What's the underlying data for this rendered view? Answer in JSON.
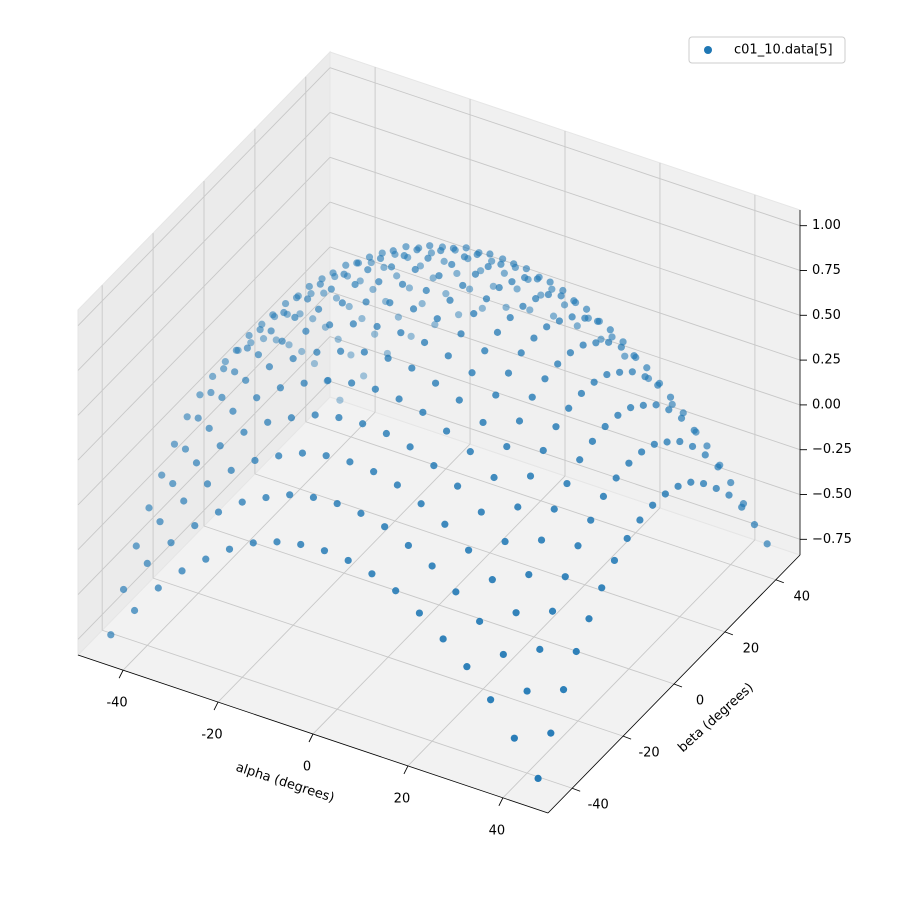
{
  "chart_data": {
    "type": "scatter3d",
    "xlabel": "alpha (degrees)",
    "ylabel": "beta (degrees)",
    "xlim": [
      -49.5,
      49.5
    ],
    "ylim": [
      -49.5,
      49.5
    ],
    "zlim": [
      -0.8375,
      1.0875
    ],
    "xticks": [
      -40,
      -20,
      0,
      20,
      40
    ],
    "yticks": [
      -40,
      -20,
      0,
      20,
      40
    ],
    "zticks": [
      {
        "value": -0.75,
        "label": "−0.75"
      },
      {
        "value": -0.5,
        "label": "−0.50"
      },
      {
        "value": -0.25,
        "label": "−0.25"
      },
      {
        "value": 0,
        "label": "0.00"
      },
      {
        "value": 0.25,
        "label": "0.25"
      },
      {
        "value": 0.5,
        "label": "0.50"
      },
      {
        "value": 0.75,
        "label": "0.75"
      },
      {
        "value": 1,
        "label": "1.00"
      }
    ],
    "grid": true,
    "legend": "upper right",
    "series": [
      {
        "name": "c01_10.data[5]",
        "color": "#1f77b4",
        "x": [
          -45,
          -40,
          -35,
          -30,
          -25,
          -20,
          -15,
          -10,
          -5,
          0,
          5,
          10,
          15,
          20,
          25,
          30,
          35,
          40,
          45,
          -45,
          -40,
          -35,
          -30,
          -25,
          -20,
          -15,
          -10,
          -5,
          0,
          5,
          10,
          15,
          20,
          25,
          30,
          35,
          40,
          45,
          -45,
          -40,
          -35,
          -30,
          -25,
          -20,
          -15,
          -10,
          -5,
          0,
          5,
          10,
          15,
          20,
          25,
          30,
          35,
          40,
          45,
          -45,
          -40,
          -35,
          -30,
          -25,
          -20,
          -15,
          -10,
          -5,
          0,
          5,
          10,
          15,
          20,
          25,
          30,
          35,
          40,
          45,
          -45,
          -40,
          -35,
          -30,
          -25,
          -20,
          -15,
          -10,
          -5,
          0,
          5,
          10,
          15,
          20,
          25,
          30,
          35,
          40,
          45,
          -45,
          -40,
          -35,
          -30,
          -25,
          -20,
          -15,
          -10,
          -5,
          0,
          5,
          10,
          15,
          20,
          25,
          30,
          35,
          40,
          45,
          -45,
          -40,
          -35,
          -30,
          -25,
          -20,
          -15,
          -10,
          -5,
          0,
          5,
          10,
          15,
          20,
          25,
          30,
          35,
          40,
          45,
          -45,
          -40,
          -35,
          -30,
          -25,
          -20,
          -15,
          -10,
          -5,
          0,
          5,
          10,
          15,
          20,
          25,
          30,
          35,
          40,
          45,
          -45,
          -40,
          -35,
          -30,
          -25,
          -20,
          -15,
          -10,
          -5,
          0,
          5,
          10,
          15,
          20,
          25,
          30,
          35,
          40,
          45,
          -45,
          -40,
          -35,
          -30,
          -25,
          -20,
          -15,
          -10,
          -5,
          0,
          5,
          10,
          15,
          20,
          25,
          30,
          35,
          40,
          45,
          -45,
          -40,
          -35,
          -30,
          -25,
          -20,
          -15,
          -10,
          -5,
          0,
          5,
          10,
          15,
          20,
          25,
          30,
          35,
          40,
          45,
          -45,
          -40,
          -35,
          -30,
          -25,
          -20,
          -15,
          -10,
          -5,
          0,
          5,
          10,
          15,
          20,
          25,
          30,
          35,
          40,
          45,
          -45,
          -40,
          -35,
          -30,
          -25,
          -20,
          -15,
          -10,
          -5,
          0,
          5,
          10,
          15,
          20,
          25,
          30,
          35,
          40,
          45,
          -45,
          -40,
          -35,
          -30,
          -25,
          -20,
          -15,
          -10,
          -5,
          0,
          5,
          10,
          15,
          20,
          25,
          30,
          35,
          40,
          45,
          -45,
          -40,
          -35,
          -30,
          -25,
          -20,
          -15,
          -10,
          -5,
          0,
          5,
          10,
          15,
          20,
          25,
          30,
          35,
          40,
          45,
          -45,
          -40,
          -35,
          -30,
          -25,
          -20,
          -15,
          -10,
          -5,
          0,
          5,
          10,
          15,
          20,
          25,
          30,
          35,
          40,
          45,
          -45,
          -40,
          -35,
          -30,
          -25,
          -20,
          -15,
          -10,
          -5,
          0,
          5,
          10,
          15,
          20,
          25,
          30,
          35,
          40,
          45,
          -45,
          -40,
          -35,
          -30,
          -25,
          -20,
          -15,
          -10,
          -5,
          0,
          5,
          10,
          15,
          20,
          25,
          30,
          35,
          40,
          45,
          -45,
          -40,
          -35,
          -30,
          -25,
          -20,
          -15,
          -10,
          -5,
          0,
          5,
          10,
          15,
          20,
          25,
          30,
          35,
          40,
          45
        ],
        "y": [
          -45,
          -45,
          -45,
          -45,
          -45,
          -45,
          -45,
          -45,
          -45,
          -45,
          -45,
          -45,
          -45,
          -45,
          -45,
          -45,
          -45,
          -45,
          -45,
          -40,
          -40,
          -40,
          -40,
          -40,
          -40,
          -40,
          -40,
          -40,
          -40,
          -40,
          -40,
          -40,
          -40,
          -40,
          -40,
          -40,
          -40,
          -40,
          -35,
          -35,
          -35,
          -35,
          -35,
          -35,
          -35,
          -35,
          -35,
          -35,
          -35,
          -35,
          -35,
          -35,
          -35,
          -35,
          -35,
          -35,
          -35,
          -30,
          -30,
          -30,
          -30,
          -30,
          -30,
          -30,
          -30,
          -30,
          -30,
          -30,
          -30,
          -30,
          -30,
          -30,
          -30,
          -30,
          -30,
          -30,
          -25,
          -25,
          -25,
          -25,
          -25,
          -25,
          -25,
          -25,
          -25,
          -25,
          -25,
          -25,
          -25,
          -25,
          -25,
          -25,
          -25,
          -25,
          -25,
          -20,
          -20,
          -20,
          -20,
          -20,
          -20,
          -20,
          -20,
          -20,
          -20,
          -20,
          -20,
          -20,
          -20,
          -20,
          -20,
          -20,
          -20,
          -20,
          -15,
          -15,
          -15,
          -15,
          -15,
          -15,
          -15,
          -15,
          -15,
          -15,
          -15,
          -15,
          -15,
          -15,
          -15,
          -15,
          -15,
          -15,
          -15,
          -10,
          -10,
          -10,
          -10,
          -10,
          -10,
          -10,
          -10,
          -10,
          -10,
          -10,
          -10,
          -10,
          -10,
          -10,
          -10,
          -10,
          -10,
          -10,
          -5,
          -5,
          -5,
          -5,
          -5,
          -5,
          -5,
          -5,
          -5,
          -5,
          -5,
          -5,
          -5,
          -5,
          -5,
          -5,
          -5,
          -5,
          -5,
          0,
          0,
          0,
          0,
          0,
          0,
          0,
          0,
          0,
          0,
          0,
          0,
          0,
          0,
          0,
          0,
          0,
          0,
          0,
          5,
          5,
          5,
          5,
          5,
          5,
          5,
          5,
          5,
          5,
          5,
          5,
          5,
          5,
          5,
          5,
          5,
          5,
          5,
          10,
          10,
          10,
          10,
          10,
          10,
          10,
          10,
          10,
          10,
          10,
          10,
          10,
          10,
          10,
          10,
          10,
          10,
          10,
          15,
          15,
          15,
          15,
          15,
          15,
          15,
          15,
          15,
          15,
          15,
          15,
          15,
          15,
          15,
          15,
          15,
          15,
          15,
          20,
          20,
          20,
          20,
          20,
          20,
          20,
          20,
          20,
          20,
          20,
          20,
          20,
          20,
          20,
          20,
          20,
          20,
          20,
          25,
          25,
          25,
          25,
          25,
          25,
          25,
          25,
          25,
          25,
          25,
          25,
          25,
          25,
          25,
          25,
          25,
          25,
          25,
          30,
          30,
          30,
          30,
          30,
          30,
          30,
          30,
          30,
          30,
          30,
          30,
          30,
          30,
          30,
          30,
          30,
          30,
          30,
          35,
          35,
          35,
          35,
          35,
          35,
          35,
          35,
          35,
          35,
          35,
          35,
          35,
          35,
          35,
          35,
          35,
          35,
          35,
          40,
          40,
          40,
          40,
          40,
          40,
          40,
          40,
          40,
          40,
          40,
          40,
          40,
          40,
          40,
          40,
          40,
          40,
          40,
          45,
          45,
          45,
          45,
          45,
          45,
          45,
          45,
          45,
          45,
          45,
          45,
          45,
          45,
          45,
          45,
          45,
          45,
          45
        ],
        "z": [
          -0.75,
          -0.57,
          -0.4,
          -0.26,
          -0.15,
          -0.05,
          0.03,
          0.08,
          0.11,
          0.12,
          0.11,
          0.08,
          0.03,
          -0.05,
          -0.15,
          -0.26,
          -0.4,
          -0.57,
          -0.75,
          -0.57,
          -0.38,
          -0.22,
          -0.08,
          0.04,
          0.14,
          0.21,
          0.27,
          0.3,
          0.31,
          0.3,
          0.27,
          0.21,
          0.14,
          0.04,
          -0.08,
          -0.22,
          -0.38,
          -0.57,
          -0.4,
          -0.22,
          -0.06,
          0.08,
          0.2,
          0.3,
          0.37,
          0.43,
          0.46,
          0.47,
          0.46,
          0.43,
          0.37,
          0.3,
          0.2,
          0.08,
          -0.06,
          -0.22,
          -0.4,
          -0.26,
          -0.08,
          0.08,
          0.22,
          0.34,
          0.44,
          0.51,
          0.57,
          0.6,
          0.61,
          0.6,
          0.57,
          0.51,
          0.44,
          0.34,
          0.22,
          0.08,
          -0.08,
          -0.26,
          -0.15,
          0.04,
          0.2,
          0.34,
          0.46,
          0.56,
          0.63,
          0.69,
          0.72,
          0.73,
          0.72,
          0.69,
          0.63,
          0.56,
          0.46,
          0.34,
          0.2,
          0.04,
          -0.15,
          -0.05,
          0.14,
          0.3,
          0.44,
          0.56,
          0.65,
          0.73,
          0.78,
          0.82,
          0.83,
          0.82,
          0.78,
          0.73,
          0.65,
          0.56,
          0.44,
          0.3,
          0.14,
          -0.05,
          0.03,
          0.21,
          0.37,
          0.51,
          0.63,
          0.73,
          0.81,
          0.86,
          0.89,
          0.9,
          0.89,
          0.86,
          0.81,
          0.73,
          0.63,
          0.51,
          0.37,
          0.21,
          0.03,
          0.08,
          0.27,
          0.43,
          0.57,
          0.69,
          0.78,
          0.86,
          0.91,
          0.95,
          0.96,
          0.95,
          0.91,
          0.86,
          0.78,
          0.69,
          0.57,
          0.43,
          0.27,
          0.08,
          0.11,
          0.3,
          0.46,
          0.6,
          0.72,
          0.82,
          0.89,
          0.95,
          0.98,
          0.99,
          0.98,
          0.95,
          0.89,
          0.82,
          0.72,
          0.6,
          0.46,
          0.3,
          0.11,
          0.12,
          0.31,
          0.47,
          0.61,
          0.73,
          0.83,
          0.9,
          0.96,
          0.99,
          1,
          0.99,
          0.96,
          0.9,
          0.83,
          0.73,
          0.61,
          0.47,
          0.31,
          0.12,
          0.11,
          0.3,
          0.46,
          0.6,
          0.72,
          0.82,
          0.89,
          0.95,
          0.98,
          0.99,
          0.98,
          0.95,
          0.89,
          0.82,
          0.72,
          0.6,
          0.46,
          0.3,
          0.11,
          0.08,
          0.27,
          0.43,
          0.57,
          0.69,
          0.78,
          0.86,
          0.91,
          0.95,
          0.96,
          0.95,
          0.91,
          0.86,
          0.78,
          0.69,
          0.57,
          0.43,
          0.27,
          0.08,
          0.03,
          0.21,
          0.37,
          0.51,
          0.63,
          0.73,
          0.81,
          0.86,
          0.89,
          0.9,
          0.89,
          0.86,
          0.81,
          0.73,
          0.63,
          0.51,
          0.37,
          0.21,
          0.03,
          -0.05,
          0.14,
          0.3,
          0.44,
          0.56,
          0.65,
          0.73,
          0.78,
          0.82,
          0.83,
          0.82,
          0.78,
          0.73,
          0.65,
          0.56,
          0.44,
          0.3,
          0.14,
          -0.05,
          -0.15,
          0.04,
          0.2,
          0.34,
          0.46,
          0.56,
          0.63,
          0.69,
          0.72,
          0.73,
          0.72,
          0.69,
          0.63,
          0.56,
          0.46,
          0.34,
          0.2,
          0.04,
          -0.15,
          -0.26,
          -0.08,
          0.08,
          0.22,
          0.34,
          0.44,
          0.51,
          0.57,
          0.6,
          0.61,
          0.6,
          0.57,
          0.51,
          0.44,
          0.34,
          0.22,
          0.08,
          -0.08,
          -0.26,
          -0.4,
          -0.22,
          -0.06,
          0.08,
          0.2,
          0.3,
          0.37,
          0.43,
          0.46,
          0.47,
          0.46,
          0.43,
          0.37,
          0.3,
          0.2,
          0.08,
          -0.06,
          -0.22,
          -0.4,
          -0.57,
          -0.38,
          -0.22,
          -0.08,
          0.04,
          0.14,
          0.21,
          0.27,
          0.3,
          0.31,
          0.3,
          0.27,
          0.21,
          0.14,
          0.04,
          -0.08,
          -0.22,
          -0.38,
          -0.57,
          -0.75,
          -0.57,
          -0.4,
          -0.26,
          -0.15,
          -0.05,
          0.03,
          0.08,
          0.11,
          0.12,
          0.11,
          0.08,
          0.03,
          -0.05,
          -0.15,
          -0.26,
          -0.4,
          -0.57,
          -0.75
        ]
      }
    ]
  }
}
